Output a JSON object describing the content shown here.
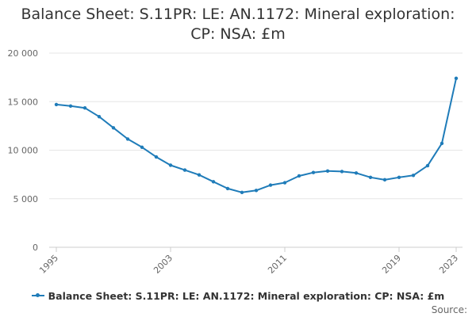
{
  "chart_data": {
    "type": "line",
    "title": "Balance Sheet: S.11PR: LE: AN.1172: Mineral exploration: CP: NSA: £m",
    "title_lines": [
      "Balance Sheet: S.11PR: LE: AN.1172: Mineral exploration:",
      "CP: NSA: £m"
    ],
    "xlabel": "",
    "ylabel": "",
    "x": [
      1995,
      1996,
      1997,
      1998,
      1999,
      2000,
      2001,
      2002,
      2003,
      2004,
      2005,
      2006,
      2007,
      2008,
      2009,
      2010,
      2011,
      2012,
      2013,
      2014,
      2015,
      2016,
      2017,
      2018,
      2019,
      2020,
      2021,
      2022,
      2023
    ],
    "series": [
      {
        "name": "Balance Sheet: S.11PR: LE: AN.1172: Mineral exploration: CP: NSA: £m",
        "color": "#1f7cb9",
        "values": [
          14700,
          14550,
          14350,
          13450,
          12300,
          11150,
          10300,
          9300,
          8450,
          7950,
          7450,
          6750,
          6050,
          5650,
          5850,
          6400,
          6650,
          7350,
          7700,
          7850,
          7800,
          7650,
          7200,
          6950,
          7200,
          7400,
          8400,
          10700,
          17400
        ]
      }
    ],
    "ylim": [
      0,
      20000
    ],
    "yticks": [
      0,
      5000,
      10000,
      15000,
      20000
    ],
    "ytick_labels": [
      "0",
      "5 000",
      "10 000",
      "15 000",
      "20 000"
    ],
    "xticks": [
      1995,
      2003,
      2011,
      2019,
      2023
    ],
    "xtick_labels": [
      "1995",
      "2003",
      "2011",
      "2019",
      "2023"
    ],
    "grid": true,
    "legend": "bottom"
  },
  "footer": {
    "source_label": "Source:"
  }
}
